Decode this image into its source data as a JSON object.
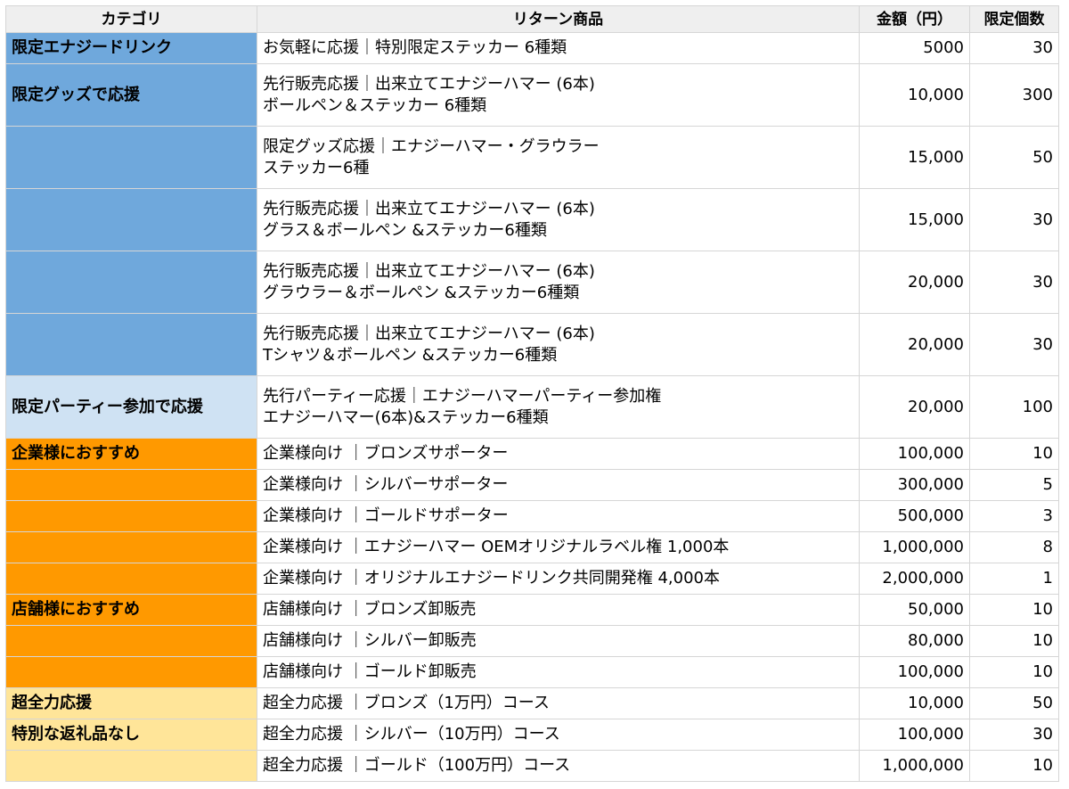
{
  "colors": {
    "blue": "#6fa8dc",
    "lightblue": "#cfe2f3",
    "orange": "#ff9900",
    "yellow": "#ffe599",
    "header": "#efefef"
  },
  "headers": [
    "カテゴリ",
    "リターン商品",
    "金額（円）",
    "限定個数"
  ],
  "rows": [
    {
      "category": "限定エナジードリンク",
      "color": "blue",
      "item": [
        "お気軽に応援｜特別限定ステッカー 6種類"
      ],
      "price": "5000",
      "qty": "30"
    },
    {
      "category": "限定グッズで応援",
      "color": "blue",
      "item": [
        "先行販売応援｜出来立てエナジーハマー (6本)",
        "ボールペン＆ステッカー 6種類"
      ],
      "price": "10,000",
      "qty": "300"
    },
    {
      "category": "",
      "color": "blue",
      "item": [
        "限定グッズ応援｜エナジーハマー・グラウラー",
        "ステッカー6種"
      ],
      "price": "15,000",
      "qty": "50"
    },
    {
      "category": "",
      "color": "blue",
      "item": [
        "先行販売応援｜出来立てエナジーハマー (6本)",
        "グラス＆ボールペン &ステッカー6種類"
      ],
      "price": "15,000",
      "qty": "30"
    },
    {
      "category": "",
      "color": "blue",
      "item": [
        "先行販売応援｜出来立てエナジーハマー (6本)",
        "グラウラー＆ボールペン &ステッカー6種類"
      ],
      "price": "20,000",
      "qty": "30"
    },
    {
      "category": "",
      "color": "blue",
      "item": [
        "先行販売応援｜出来立てエナジーハマー (6本)",
        "Tシャツ＆ボールペン &ステッカー6種類"
      ],
      "price": "20,000",
      "qty": "30"
    },
    {
      "category": "限定パーティー参加で応援",
      "color": "lightblue",
      "item": [
        "先行パーティー応援｜エナジーハマーパーティー参加権",
        "エナジーハマー(6本)&ステッカー6種類"
      ],
      "price": "20,000",
      "qty": "100"
    },
    {
      "category": "企業様におすすめ",
      "color": "orange",
      "item": [
        "企業様向け ｜ブロンズサポーター"
      ],
      "price": "100,000",
      "qty": "10"
    },
    {
      "category": "",
      "color": "orange",
      "item": [
        "企業様向け ｜シルバーサポーター"
      ],
      "price": "300,000",
      "qty": "5"
    },
    {
      "category": "",
      "color": "orange",
      "item": [
        "企業様向け ｜ゴールドサポーター"
      ],
      "price": "500,000",
      "qty": "3"
    },
    {
      "category": "",
      "color": "orange",
      "item": [
        "企業様向け ｜エナジーハマー OEMオリジナルラベル権 1,000本"
      ],
      "price": "1,000,000",
      "qty": "8"
    },
    {
      "category": "",
      "color": "orange",
      "item": [
        "企業様向け ｜オリジナルエナジードリンク共同開発権 4,000本"
      ],
      "price": "2,000,000",
      "qty": "1"
    },
    {
      "category": "店舗様におすすめ",
      "color": "orange",
      "item": [
        "店舗様向け ｜ブロンズ卸販売"
      ],
      "price": "50,000",
      "qty": "10"
    },
    {
      "category": "",
      "color": "orange",
      "item": [
        "店舗様向け ｜シルバー卸販売"
      ],
      "price": "80,000",
      "qty": "10"
    },
    {
      "category": "",
      "color": "orange",
      "item": [
        "店舗様向け ｜ゴールド卸販売"
      ],
      "price": "100,000",
      "qty": "10"
    },
    {
      "category": "超全力応援",
      "color": "yellow",
      "item": [
        "超全力応援 ｜ブロンズ（1万円）コース"
      ],
      "price": "10,000",
      "qty": "50"
    },
    {
      "category": "特別な返礼品なし",
      "color": "yellow",
      "item": [
        "超全力応援 ｜シルバー（10万円）コース"
      ],
      "price": "100,000",
      "qty": "30"
    },
    {
      "category": "",
      "color": "yellow",
      "item": [
        "超全力応援 ｜ゴールド（100万円）コース"
      ],
      "price": "1,000,000",
      "qty": "10"
    }
  ]
}
